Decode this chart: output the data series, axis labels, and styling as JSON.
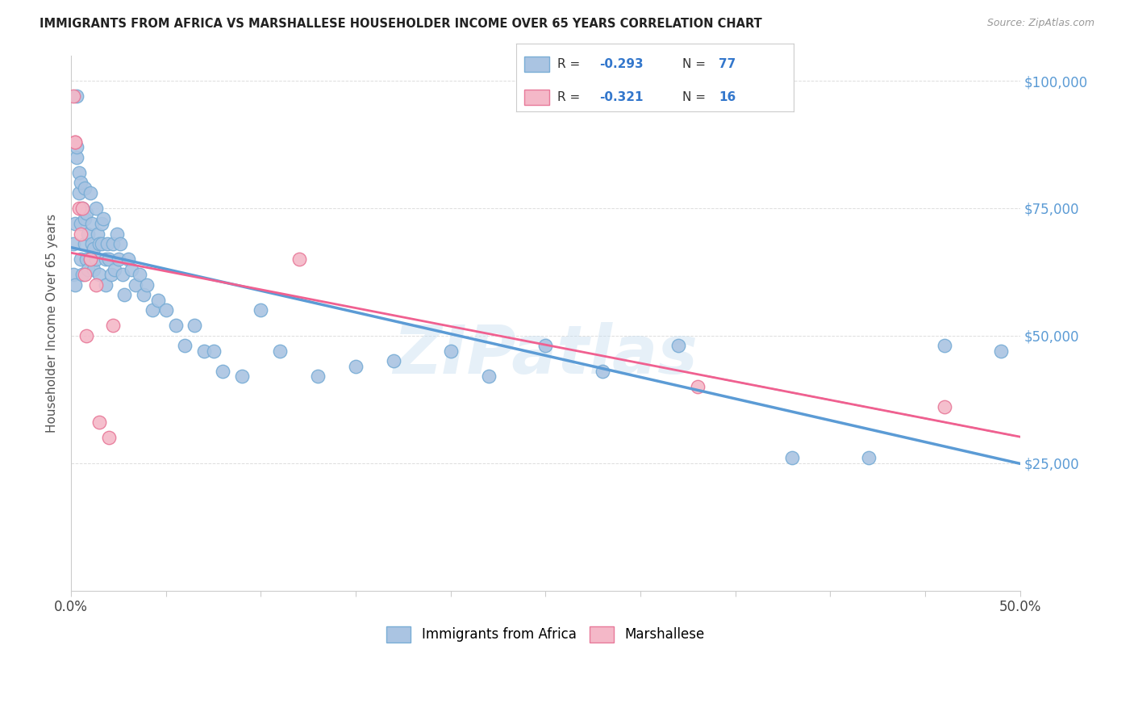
{
  "title": "IMMIGRANTS FROM AFRICA VS MARSHALLESE HOUSEHOLDER INCOME OVER 65 YEARS CORRELATION CHART",
  "source": "Source: ZipAtlas.com",
  "ylabel": "Householder Income Over 65 years",
  "y_ticks": [
    0,
    25000,
    50000,
    75000,
    100000
  ],
  "y_tick_labels": [
    "",
    "$25,000",
    "$50,000",
    "$75,000",
    "$100,000"
  ],
  "xlim": [
    0.0,
    0.5
  ],
  "ylim": [
    0,
    105000
  ],
  "africa_color": "#aac4e2",
  "africa_edge": "#7aaed6",
  "marsh_color": "#f4b8c8",
  "marsh_edge": "#e87a9a",
  "line_africa_color": "#5b9bd5",
  "line_marsh_color": "#f06090",
  "legend_label1": "Immigrants from Africa",
  "legend_label2": "Marshallese",
  "watermark": "ZIPatlas",
  "background_color": "#ffffff",
  "grid_color": "#dddddd",
  "africa_x": [
    0.001,
    0.001,
    0.002,
    0.002,
    0.003,
    0.003,
    0.003,
    0.004,
    0.004,
    0.005,
    0.005,
    0.005,
    0.006,
    0.006,
    0.007,
    0.007,
    0.007,
    0.008,
    0.008,
    0.009,
    0.009,
    0.01,
    0.01,
    0.011,
    0.011,
    0.012,
    0.012,
    0.013,
    0.013,
    0.014,
    0.015,
    0.015,
    0.016,
    0.016,
    0.017,
    0.018,
    0.018,
    0.019,
    0.02,
    0.021,
    0.022,
    0.023,
    0.024,
    0.025,
    0.026,
    0.027,
    0.028,
    0.03,
    0.032,
    0.034,
    0.036,
    0.038,
    0.04,
    0.043,
    0.046,
    0.05,
    0.055,
    0.06,
    0.065,
    0.07,
    0.075,
    0.08,
    0.09,
    0.1,
    0.11,
    0.13,
    0.15,
    0.17,
    0.2,
    0.22,
    0.25,
    0.28,
    0.32,
    0.38,
    0.42,
    0.46,
    0.49
  ],
  "africa_y": [
    68000,
    62000,
    72000,
    60000,
    97000,
    85000,
    87000,
    82000,
    78000,
    80000,
    72000,
    65000,
    75000,
    62000,
    79000,
    73000,
    68000,
    74000,
    65000,
    70000,
    63000,
    78000,
    65000,
    72000,
    68000,
    67000,
    63000,
    75000,
    65000,
    70000,
    68000,
    62000,
    72000,
    68000,
    73000,
    65000,
    60000,
    68000,
    65000,
    62000,
    68000,
    63000,
    70000,
    65000,
    68000,
    62000,
    58000,
    65000,
    63000,
    60000,
    62000,
    58000,
    60000,
    55000,
    57000,
    55000,
    52000,
    48000,
    52000,
    47000,
    47000,
    43000,
    42000,
    55000,
    47000,
    42000,
    44000,
    45000,
    47000,
    42000,
    48000,
    43000,
    48000,
    26000,
    26000,
    48000,
    47000
  ],
  "marsh_x": [
    0.001,
    0.002,
    0.002,
    0.004,
    0.005,
    0.006,
    0.007,
    0.008,
    0.01,
    0.013,
    0.015,
    0.02,
    0.022,
    0.12,
    0.33,
    0.46
  ],
  "marsh_y": [
    97000,
    88000,
    88000,
    75000,
    70000,
    75000,
    62000,
    50000,
    65000,
    60000,
    33000,
    30000,
    52000,
    65000,
    40000,
    36000
  ]
}
